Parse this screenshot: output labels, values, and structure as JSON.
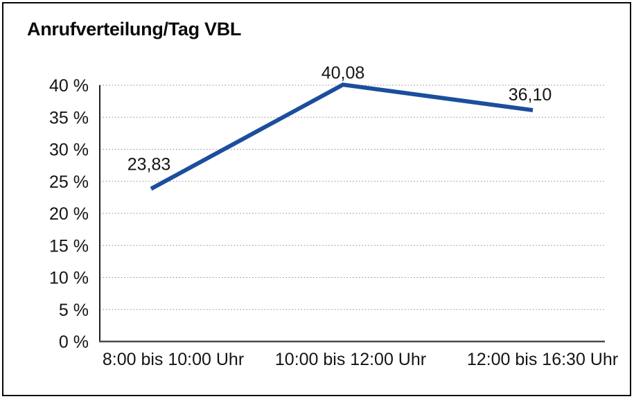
{
  "chart_data": {
    "type": "line",
    "title": "Anrufverteilung/Tag VBL",
    "categories": [
      "8:00 bis 10:00 Uhr",
      "10:00 bis 12:00 Uhr",
      "12:00 bis 16:30 Uhr"
    ],
    "series": [
      {
        "name": "Anrufverteilung/Tag VBL",
        "values": [
          23.83,
          40.08,
          36.1
        ]
      }
    ],
    "point_labels": [
      "23,83",
      "40,08",
      "36,10"
    ],
    "xlabel": "",
    "ylabel": "",
    "ylim": [
      0,
      40
    ],
    "ytick_step": 5,
    "ytick_labels": [
      "0 %",
      "5 %",
      "10 %",
      "15 %",
      "20 %",
      "25 %",
      "30 %",
      "35 %",
      "40 %"
    ],
    "grid": "horizontal-dotted",
    "legend_position": "none",
    "colors": {
      "line": "#1b4e9c",
      "grid": "#8f8f8f",
      "y_axis": "#1c1c1c",
      "x_axis": "#4a4a4a",
      "text": "#141414",
      "background": "#ffffff",
      "border": "#050505"
    }
  }
}
